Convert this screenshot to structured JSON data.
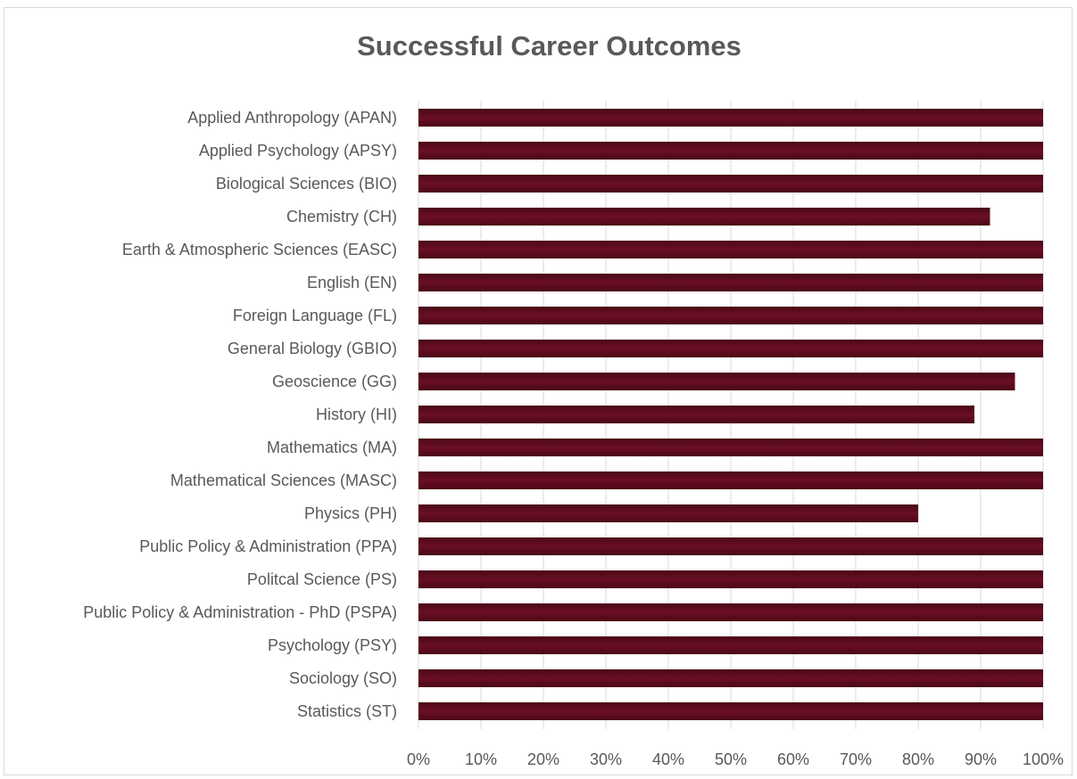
{
  "chart_data": {
    "type": "bar",
    "orientation": "horizontal",
    "title": "Successful Career Outcomes",
    "xlabel": "",
    "ylabel": "",
    "xlim": [
      0,
      1
    ],
    "x_ticks": [
      "0%",
      "10%",
      "20%",
      "30%",
      "40%",
      "50%",
      "60%",
      "70%",
      "80%",
      "90%",
      "100%"
    ],
    "grid": "vertical",
    "legend": "none",
    "bar_color": "#6b0f24",
    "categories": [
      "Applied Anthropology (APAN)",
      "Applied Psychology (APSY)",
      "Biological Sciences (BIO)",
      "Chemistry (CH)",
      "Earth & Atmospheric Sciences (EASC)",
      "English (EN)",
      "Foreign Language (FL)",
      "General Biology (GBIO)",
      "Geoscience (GG)",
      "History (HI)",
      "Mathematics (MA)",
      "Mathematical Sciences (MASC)",
      "Physics (PH)",
      "Public Policy & Administration (PPA)",
      "Politcal Science (PS)",
      "Public Policy & Administration - PhD (PSPA)",
      "Psychology (PSY)",
      "Sociology (SO)",
      "Statistics (ST)"
    ],
    "values": [
      1.0,
      1.0,
      1.0,
      0.915,
      1.0,
      1.0,
      1.0,
      1.0,
      0.955,
      0.89,
      1.0,
      1.0,
      0.8,
      1.0,
      1.0,
      1.0,
      1.0,
      1.0,
      1.0
    ]
  }
}
